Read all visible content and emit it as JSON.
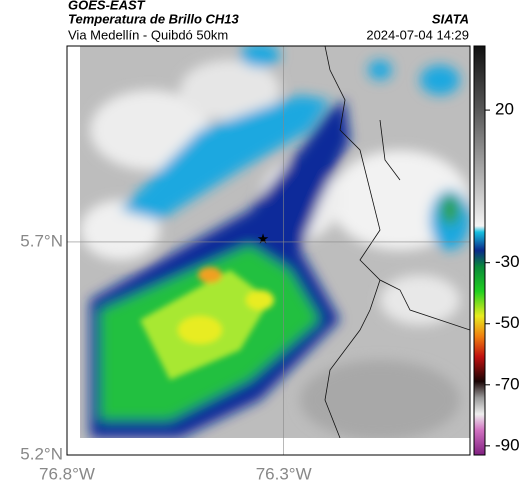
{
  "header": {
    "source": "GOES-EAST",
    "title": "Temperatura de Brillo CH13",
    "subtitle": "Via Medellín - Quibdó 50km",
    "agency": "SIATA",
    "datetime": "2024-07-04 14:29"
  },
  "map": {
    "lonlim": [
      -76.8,
      -75.87
    ],
    "latlim": [
      5.2,
      6.16
    ],
    "lon_ticks": [
      {
        "value": -76.8,
        "label": "76.8°W"
      },
      {
        "value": -76.3,
        "label": "76.3°W"
      }
    ],
    "lat_ticks": [
      {
        "value": 5.7,
        "label": "5.7°N"
      },
      {
        "value": 5.2,
        "label": "5.2°N"
      }
    ]
  },
  "colorbar": {
    "lim": [
      -93,
      41
    ],
    "ticks": [
      20,
      -30,
      -50,
      -70,
      -90
    ]
  }
}
